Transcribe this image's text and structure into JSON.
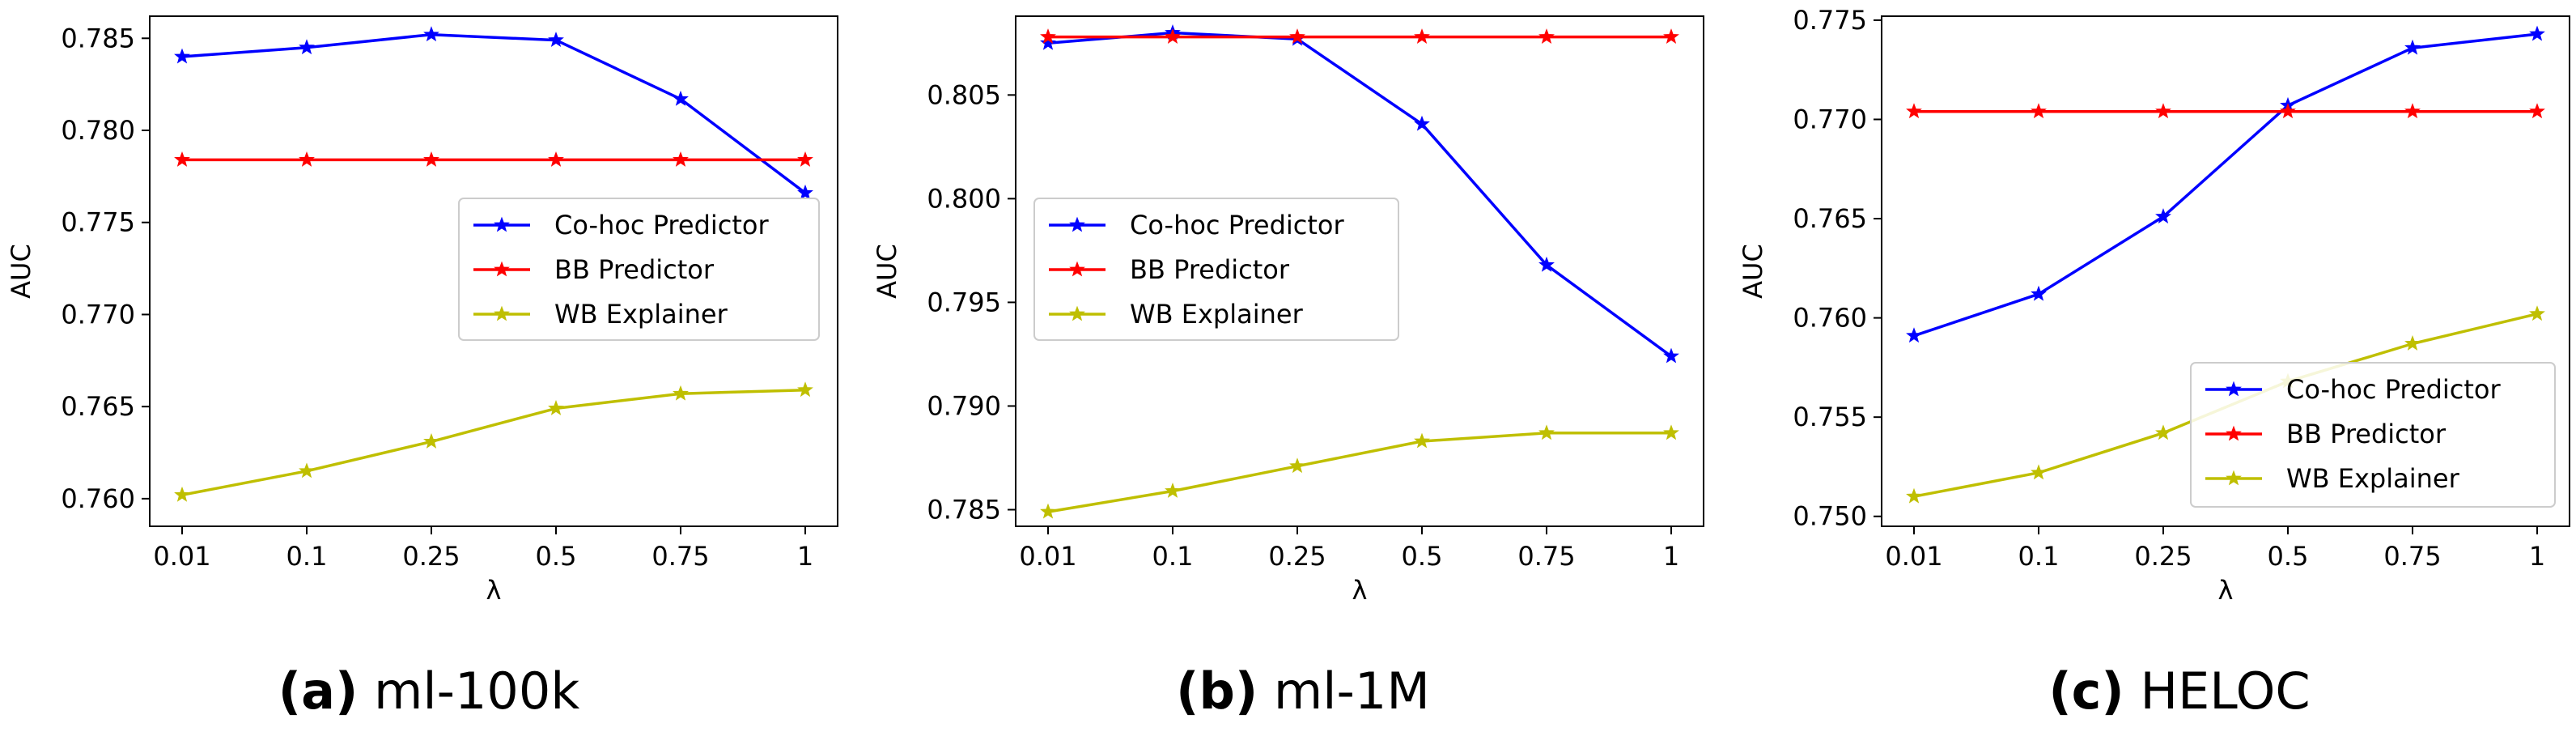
{
  "chart_data": [
    {
      "type": "line",
      "caption_letter": "(a)",
      "caption_text": " ml-100k",
      "xlabel": "λ",
      "ylabel": "AUC",
      "categories": [
        "0.01",
        "0.1",
        "0.25",
        "0.5",
        "0.75",
        "1"
      ],
      "ylim": [
        0.7585,
        0.7862
      ],
      "yticks": [
        "0.760",
        "0.765",
        "0.770",
        "0.775",
        "0.780",
        "0.785"
      ],
      "ytick_values": [
        0.76,
        0.765,
        0.77,
        0.775,
        0.78,
        0.785
      ],
      "legend_position": "center-right",
      "series": [
        {
          "name": "Co-hoc Predictor",
          "color": "#0000ff",
          "values": [
            0.784,
            0.7845,
            0.7852,
            0.7849,
            0.7817,
            0.7766
          ]
        },
        {
          "name": "BB Predictor",
          "color": "#ff0000",
          "values": [
            0.7784,
            0.7784,
            0.7784,
            0.7784,
            0.7784,
            0.7784
          ]
        },
        {
          "name": "WB Explainer",
          "color": "#bfbf00",
          "values": [
            0.7602,
            0.7615,
            0.7631,
            0.7649,
            0.7657,
            0.7659
          ]
        }
      ]
    },
    {
      "type": "line",
      "caption_letter": "(b)",
      "caption_text": " ml-1M",
      "xlabel": "λ",
      "ylabel": "AUC",
      "categories": [
        "0.01",
        "0.1",
        "0.25",
        "0.5",
        "0.75",
        "1"
      ],
      "ylim": [
        0.7842,
        0.8088
      ],
      "yticks": [
        "0.785",
        "0.790",
        "0.795",
        "0.800",
        "0.805"
      ],
      "ytick_values": [
        0.785,
        0.79,
        0.795,
        0.8,
        0.805
      ],
      "legend_position": "center-left",
      "series": [
        {
          "name": "Co-hoc Predictor",
          "color": "#0000ff",
          "values": [
            0.8075,
            0.808,
            0.8077,
            0.8036,
            0.7968,
            0.7924
          ]
        },
        {
          "name": "BB Predictor",
          "color": "#ff0000",
          "values": [
            0.8078,
            0.8078,
            0.8078,
            0.8078,
            0.8078,
            0.8078
          ]
        },
        {
          "name": "WB Explainer",
          "color": "#bfbf00",
          "values": [
            0.7849,
            0.7859,
            0.7871,
            0.7883,
            0.7887,
            0.7887
          ]
        }
      ]
    },
    {
      "type": "line",
      "caption_letter": "(c)",
      "caption_text": " HELOC",
      "xlabel": "λ",
      "ylabel": "AUC",
      "categories": [
        "0.01",
        "0.1",
        "0.25",
        "0.5",
        "0.75",
        "1"
      ],
      "ylim": [
        0.7495,
        0.7752
      ],
      "yticks": [
        "0.750",
        "0.755",
        "0.760",
        "0.765",
        "0.770",
        "0.775"
      ],
      "ytick_values": [
        0.75,
        0.755,
        0.76,
        0.765,
        0.77,
        0.775
      ],
      "legend_position": "lower-right",
      "series": [
        {
          "name": "Co-hoc Predictor",
          "color": "#0000ff",
          "values": [
            0.7591,
            0.7612,
            0.7651,
            0.7707,
            0.7736,
            0.7743
          ]
        },
        {
          "name": "BB Predictor",
          "color": "#ff0000",
          "values": [
            0.7704,
            0.7704,
            0.7704,
            0.7704,
            0.7704,
            0.7704
          ]
        },
        {
          "name": "WB Explainer",
          "color": "#bfbf00",
          "values": [
            0.751,
            0.7522,
            0.7542,
            0.7568,
            0.7587,
            0.7602
          ]
        }
      ]
    }
  ]
}
